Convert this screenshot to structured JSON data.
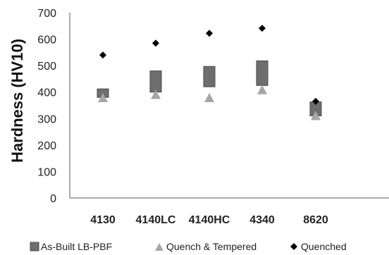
{
  "chart_data": {
    "type": "scatter",
    "categories": [
      "4130",
      "4140LC",
      "4140HC",
      "4340",
      "8620"
    ],
    "ylabel": "Hardness (HV10)",
    "xlabel": "",
    "ylim": [
      0,
      700
    ],
    "yticks": [
      0,
      100,
      200,
      300,
      400,
      500,
      600,
      700
    ],
    "grid": false,
    "legend_position": "bottom",
    "series": [
      {
        "name": "As-Built LB-PBF",
        "marker": "range-box",
        "low": [
          380,
          400,
          420,
          425,
          310
        ],
        "high": [
          412,
          480,
          497,
          518,
          363
        ],
        "color": "#6e6e6e",
        "edge": "#4a4a4a"
      },
      {
        "name": "Quench & Tempered",
        "marker": "triangle",
        "values": [
          378,
          390,
          378,
          408,
          310
        ],
        "color": "#a6a6a6"
      },
      {
        "name": "Quenched",
        "marker": "diamond",
        "values": [
          540,
          585,
          622,
          641,
          365
        ],
        "color": "#000000"
      }
    ]
  }
}
